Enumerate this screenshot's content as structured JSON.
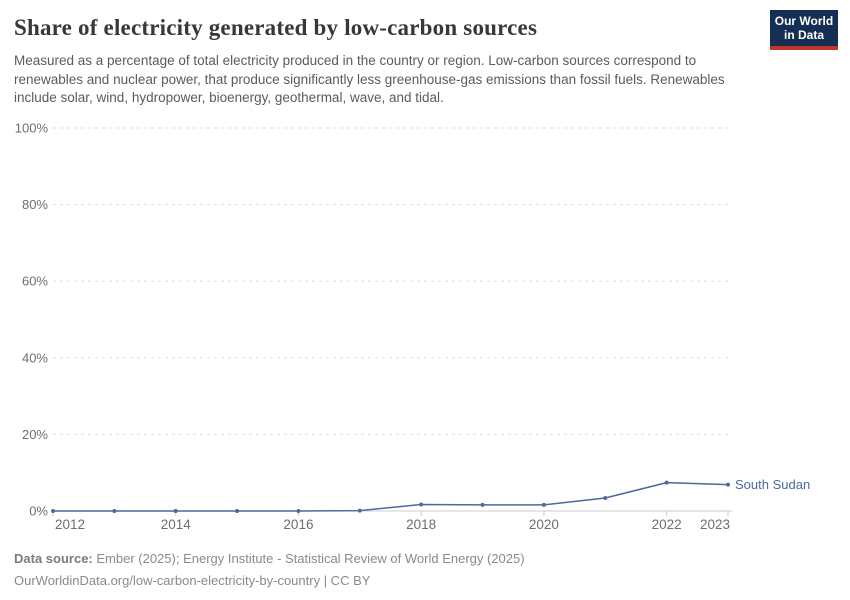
{
  "header": {
    "title": "Share of electricity generated by low-carbon sources",
    "subtitle": "Measured as a percentage of total electricity produced in the country or region. Low-carbon sources correspond to renewables and nuclear power, that produce significantly less greenhouse-gas emissions than fossil fuels. Renewables include solar, wind, hydropower, bioenergy, geothermal, wave, and tidal.",
    "logo": {
      "line1": "Our World",
      "line2": "in Data",
      "bg_color": "#152e54",
      "accent_color": "#c0362c"
    }
  },
  "chart_data": {
    "type": "line",
    "title": "Share of electricity generated by low-carbon sources",
    "x": [
      2012,
      2013,
      2014,
      2015,
      2016,
      2017,
      2018,
      2019,
      2020,
      2021,
      2022,
      2023
    ],
    "series": [
      {
        "name": "South Sudan",
        "values": [
          0,
          0,
          0,
          0,
          0,
          0.1,
          1.7,
          1.6,
          1.6,
          3.4,
          7.4,
          6.9
        ],
        "color": "#4C6A9C"
      }
    ],
    "xlabel": "",
    "ylabel": "",
    "ylim": [
      0,
      100
    ],
    "yticks": [
      0,
      20,
      40,
      60,
      80,
      100
    ],
    "ytick_suffix": "%",
    "xticks": [
      2012,
      2014,
      2016,
      2018,
      2020,
      2022,
      2023
    ],
    "grid": "horizontal-dashed",
    "gridline_color": "#dddddd",
    "axis_line_color": "#cccccc",
    "tick_label_color": "#6e6e6e",
    "legend_position": "end-of-line-label"
  },
  "footer": {
    "source_label": "Data source:",
    "source_text": " Ember (2025); Energy Institute - Statistical Review of World Energy (2025)",
    "citation": "OurWorldinData.org/low-carbon-electricity-by-country | CC BY"
  }
}
